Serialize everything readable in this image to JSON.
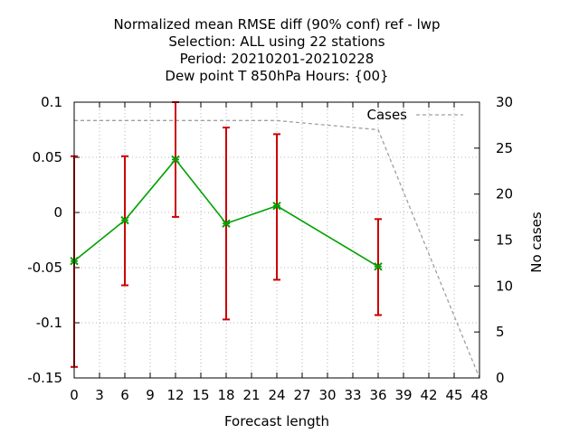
{
  "chart_data": {
    "type": "line",
    "title_lines": [
      "Normalized mean RMSE diff (90% conf) ref - lwp",
      "Selection: ALL using    22 stations",
      "Period: 20210201-20210228",
      "Dew point T 850hPa   Hours: {00}"
    ],
    "xlabel": "Forecast length",
    "ylabel": "",
    "y2label": "No cases",
    "xlim": [
      0,
      48
    ],
    "ylim": [
      -0.15,
      0.1
    ],
    "y2lim": [
      0,
      30
    ],
    "x_ticks": [
      "0",
      "3",
      "6",
      "9",
      "12",
      "15",
      "18",
      "21",
      "24",
      "27",
      "30",
      "33",
      "36",
      "39",
      "42",
      "45",
      "48"
    ],
    "y_ticks": [
      "-0.15",
      "-0.1",
      "-0.05",
      "0",
      "0.05",
      "0.1"
    ],
    "y2_ticks": [
      "0",
      "5",
      "10",
      "15",
      "20",
      "25",
      "30"
    ],
    "grid": true,
    "legend_position": "top-right",
    "series": [
      {
        "name": "",
        "color": "#00a000",
        "marker_color": "#00a000",
        "x": [
          0,
          6,
          12,
          18,
          24,
          36
        ],
        "y": [
          -0.044,
          -0.007,
          0.048,
          -0.01,
          0.006,
          -0.049
        ],
        "err_low": [
          -0.14,
          -0.066,
          -0.004,
          -0.097,
          -0.061,
          -0.093
        ],
        "err_high": [
          0.051,
          0.051,
          0.1,
          0.077,
          0.071,
          -0.006
        ],
        "err_color": "#cc0000"
      },
      {
        "name": "Cases",
        "axis": "y2",
        "color": "#a0a0a0",
        "x": [
          0,
          6,
          12,
          18,
          24,
          36,
          48
        ],
        "y": [
          28,
          28,
          28,
          28,
          28,
          27,
          0
        ]
      }
    ]
  }
}
